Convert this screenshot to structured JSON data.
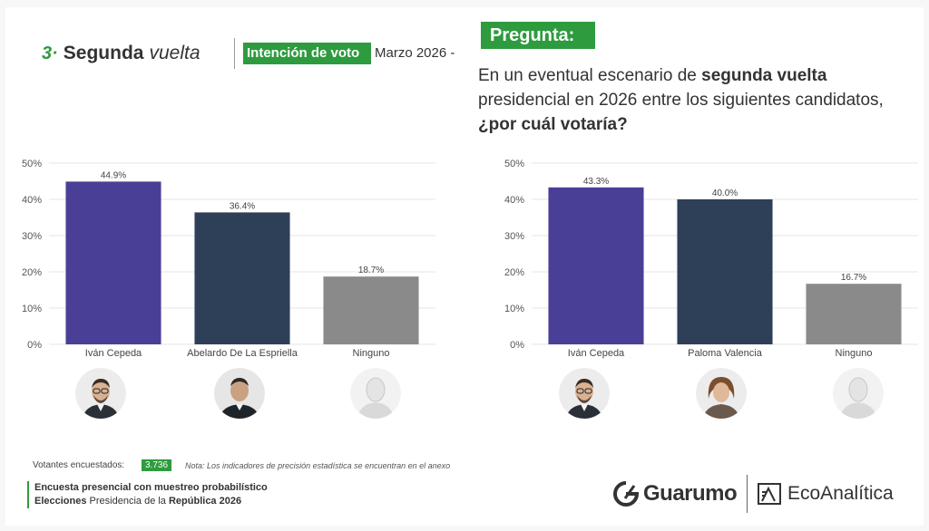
{
  "header": {
    "section_number": "3·",
    "section_title": "Segunda",
    "section_title_italic": "vuelta",
    "intencion_label": "Intención de voto",
    "fecha": "Marzo 2026 -"
  },
  "pregunta": {
    "tag": "Pregunta:",
    "text_part1": "En un eventual escenario de ",
    "text_bold1": "segunda vuelta",
    "text_part2": " presidencial en 2026 entre los siguientes candidatos, ",
    "text_bold2": "¿por cuál votaría?"
  },
  "chart_data": [
    {
      "type": "bar",
      "categories": [
        "Iván Cepeda",
        "Abelardo De La Espriella",
        "Ninguno"
      ],
      "values": [
        44.9,
        36.4,
        18.7
      ],
      "value_labels": [
        "44.9%",
        "36.4%",
        "18.7%"
      ],
      "ylim": [
        0,
        50
      ],
      "yticks": [
        0,
        10,
        20,
        30,
        40,
        50
      ],
      "ytick_labels": [
        "0%",
        "10%",
        "20%",
        "30%",
        "40%",
        "50%"
      ],
      "colors": [
        "#4a3f96",
        "#2e3f58",
        "#8a8a8a"
      ],
      "title": "",
      "xlabel": "",
      "ylabel": ""
    },
    {
      "type": "bar",
      "categories": [
        "Iván Cepeda",
        "Paloma Valencia",
        "Ninguno"
      ],
      "values": [
        43.3,
        40.0,
        16.7
      ],
      "value_labels": [
        "43.3%",
        "40.0%",
        "16.7%"
      ],
      "ylim": [
        0,
        50
      ],
      "yticks": [
        0,
        10,
        20,
        30,
        40,
        50
      ],
      "ytick_labels": [
        "0%",
        "10%",
        "20%",
        "30%",
        "40%",
        "50%"
      ],
      "colors": [
        "#4a3f96",
        "#2e3f58",
        "#8a8a8a"
      ],
      "title": "",
      "xlabel": "",
      "ylabel": ""
    }
  ],
  "footer": {
    "votantes_label": "Votantes encuestados:",
    "votantes_value": "3.736",
    "nota": "Nota: Los indicadores de precisión estadística se encuentran en el anexo",
    "line1": "Encuesta presencial con muestreo probabilístico",
    "line2_bold": "Elecciones",
    "line2_normal": " Presidencia de la ",
    "line2_bold2": "República 2026"
  },
  "logos": {
    "guarumo": "Guarumo",
    "ecoanalitica": "EcoAnalítica"
  },
  "colors": {
    "accent_green": "#2e9b3e"
  }
}
